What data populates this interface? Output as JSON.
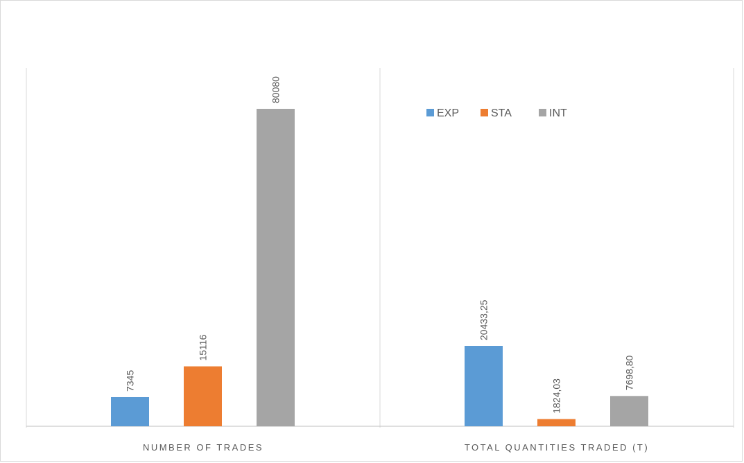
{
  "chart_data": {
    "type": "bar",
    "title": "",
    "xlabel": "",
    "ylabel": "",
    "categories": [
      "NUMBER OF TRADES",
      "TOTAL QUANTITIES TRADED (T)"
    ],
    "series": [
      {
        "name": "EXP",
        "color": "#5b9bd5",
        "values": [
          7345,
          20433.25
        ],
        "labels": [
          "7345",
          "20433,25"
        ]
      },
      {
        "name": "STA",
        "color": "#ed7d31",
        "values": [
          15116,
          1824.03
        ],
        "labels": [
          "15116",
          "1824,03"
        ]
      },
      {
        "name": "INT",
        "color": "#a5a5a5",
        "values": [
          80080,
          7698.8
        ],
        "labels": [
          "80080",
          "7698,80"
        ]
      }
    ],
    "panel_ylim": [
      [
        0,
        80080
      ],
      [
        0,
        80080
      ]
    ],
    "panel_scale_note_values": [
      [
        0,
        80080
      ],
      [
        0,
        20433.25
      ]
    ],
    "grid": false,
    "legend": "top-right panel"
  }
}
